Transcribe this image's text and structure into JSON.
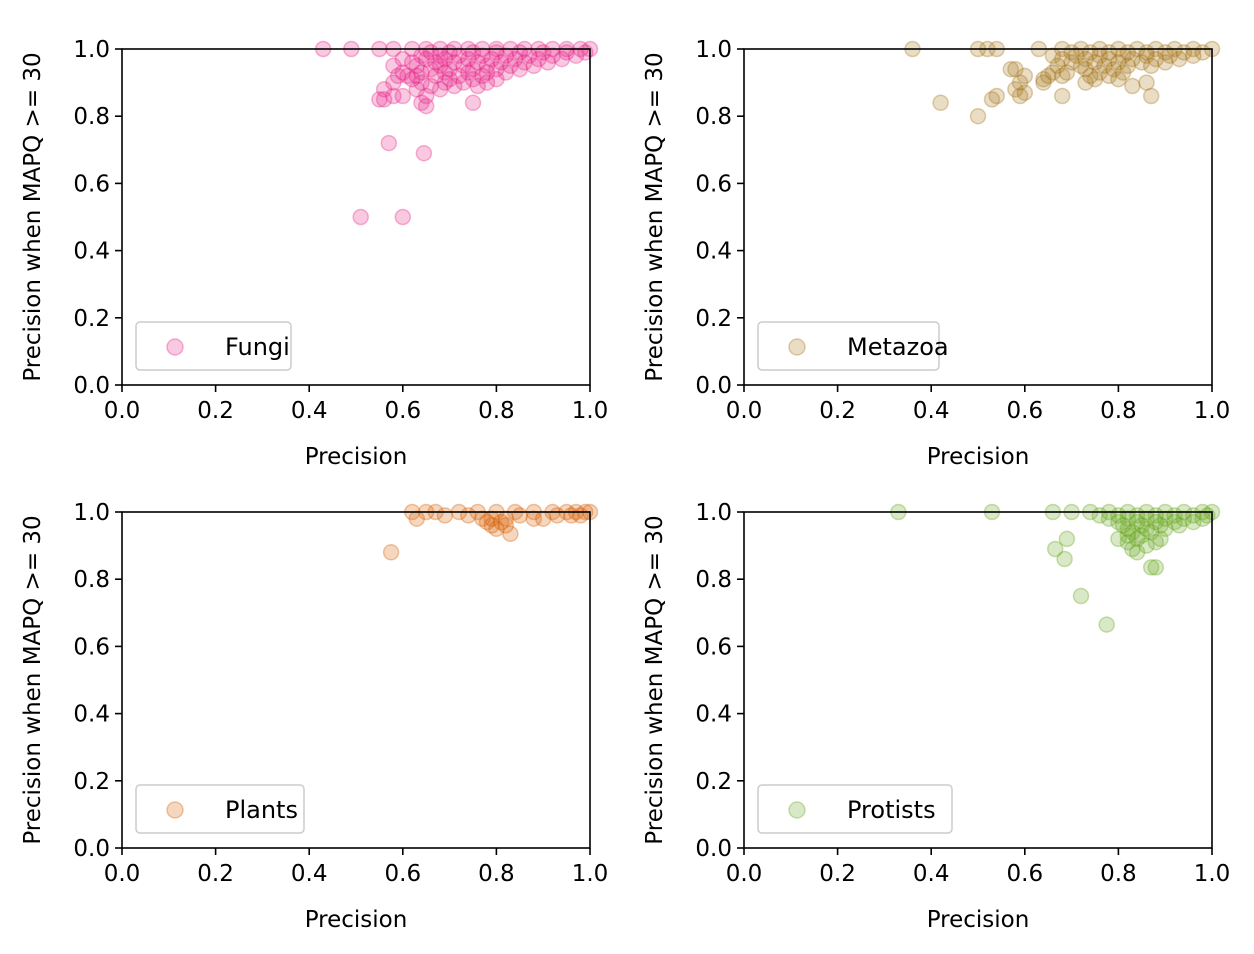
{
  "chart_data": [
    {
      "type": "scatter",
      "series": [
        {
          "name": "Fungi",
          "color": "#e7298a",
          "alpha": 0.25
        }
      ],
      "xlabel": "Precision",
      "ylabel": "Precision when MAPQ >= 30",
      "xlim": [
        0.0,
        1.0
      ],
      "ylim": [
        0.0,
        1.0
      ],
      "xticks": [
        "0.0",
        "0.2",
        "0.4",
        "0.6",
        "0.8",
        "1.0"
      ],
      "yticks": [
        "0.0",
        "0.2",
        "0.4",
        "0.6",
        "0.8",
        "1.0"
      ],
      "legend": "lower-left",
      "points": [
        [
          0.43,
          1.0
        ],
        [
          0.49,
          1.0
        ],
        [
          0.55,
          1.0
        ],
        [
          0.58,
          1.0
        ],
        [
          0.62,
          1.0
        ],
        [
          0.65,
          1.0
        ],
        [
          0.68,
          1.0
        ],
        [
          0.71,
          1.0
        ],
        [
          0.74,
          1.0
        ],
        [
          0.77,
          1.0
        ],
        [
          0.8,
          1.0
        ],
        [
          0.83,
          1.0
        ],
        [
          0.86,
          1.0
        ],
        [
          0.89,
          1.0
        ],
        [
          0.92,
          1.0
        ],
        [
          0.95,
          1.0
        ],
        [
          0.98,
          1.0
        ],
        [
          1.0,
          1.0
        ],
        [
          0.66,
          0.99
        ],
        [
          0.7,
          0.99
        ],
        [
          0.75,
          0.99
        ],
        [
          0.8,
          0.99
        ],
        [
          0.85,
          0.99
        ],
        [
          0.9,
          0.99
        ],
        [
          0.95,
          0.99
        ],
        [
          0.99,
          0.99
        ],
        [
          0.64,
          0.98
        ],
        [
          0.68,
          0.98
        ],
        [
          0.72,
          0.98
        ],
        [
          0.77,
          0.98
        ],
        [
          0.82,
          0.98
        ],
        [
          0.87,
          0.98
        ],
        [
          0.92,
          0.98
        ],
        [
          0.97,
          0.98
        ],
        [
          0.6,
          0.97
        ],
        [
          0.65,
          0.97
        ],
        [
          0.69,
          0.97
        ],
        [
          0.74,
          0.97
        ],
        [
          0.79,
          0.97
        ],
        [
          0.84,
          0.97
        ],
        [
          0.89,
          0.97
        ],
        [
          0.94,
          0.97
        ],
        [
          0.62,
          0.96
        ],
        [
          0.67,
          0.96
        ],
        [
          0.71,
          0.96
        ],
        [
          0.76,
          0.96
        ],
        [
          0.81,
          0.96
        ],
        [
          0.86,
          0.96
        ],
        [
          0.91,
          0.96
        ],
        [
          0.58,
          0.95
        ],
        [
          0.63,
          0.95
        ],
        [
          0.68,
          0.95
        ],
        [
          0.73,
          0.95
        ],
        [
          0.78,
          0.95
        ],
        [
          0.83,
          0.95
        ],
        [
          0.88,
          0.95
        ],
        [
          0.66,
          0.94
        ],
        [
          0.7,
          0.94
        ],
        [
          0.75,
          0.94
        ],
        [
          0.8,
          0.94
        ],
        [
          0.85,
          0.94
        ],
        [
          0.6,
          0.93
        ],
        [
          0.64,
          0.93
        ],
        [
          0.69,
          0.93
        ],
        [
          0.74,
          0.93
        ],
        [
          0.78,
          0.93
        ],
        [
          0.82,
          0.93
        ],
        [
          0.59,
          0.92
        ],
        [
          0.61,
          0.92
        ],
        [
          0.63,
          0.92
        ],
        [
          0.67,
          0.92
        ],
        [
          0.72,
          0.92
        ],
        [
          0.77,
          0.92
        ],
        [
          0.7,
          0.91
        ],
        [
          0.75,
          0.91
        ],
        [
          0.8,
          0.91
        ],
        [
          0.62,
          0.91
        ],
        [
          0.64,
          0.9
        ],
        [
          0.69,
          0.9
        ],
        [
          0.73,
          0.9
        ],
        [
          0.78,
          0.9
        ],
        [
          0.58,
          0.9
        ],
        [
          0.66,
          0.89
        ],
        [
          0.71,
          0.89
        ],
        [
          0.76,
          0.89
        ],
        [
          0.56,
          0.88
        ],
        [
          0.63,
          0.88
        ],
        [
          0.68,
          0.88
        ],
        [
          0.6,
          0.86
        ],
        [
          0.65,
          0.86
        ],
        [
          0.58,
          0.86
        ],
        [
          0.55,
          0.85
        ],
        [
          0.56,
          0.85
        ],
        [
          0.64,
          0.84
        ],
        [
          0.75,
          0.84
        ],
        [
          0.65,
          0.83
        ],
        [
          0.57,
          0.72
        ],
        [
          0.645,
          0.69
        ],
        [
          0.51,
          0.5
        ],
        [
          0.6,
          0.5
        ]
      ]
    },
    {
      "type": "scatter",
      "series": [
        {
          "name": "Metazoa",
          "color": "#a6761d",
          "alpha": 0.25
        }
      ],
      "xlabel": "Precision",
      "ylabel": "Precision when MAPQ >= 30",
      "xlim": [
        0.0,
        1.0
      ],
      "ylim": [
        0.0,
        1.0
      ],
      "xticks": [
        "0.0",
        "0.2",
        "0.4",
        "0.6",
        "0.8",
        "1.0"
      ],
      "yticks": [
        "0.0",
        "0.2",
        "0.4",
        "0.6",
        "0.8",
        "1.0"
      ],
      "legend": "lower-left",
      "points": [
        [
          0.36,
          1.0
        ],
        [
          0.5,
          1.0
        ],
        [
          0.52,
          1.0
        ],
        [
          0.54,
          1.0
        ],
        [
          0.63,
          1.0
        ],
        [
          0.68,
          1.0
        ],
        [
          0.72,
          1.0
        ],
        [
          0.76,
          1.0
        ],
        [
          0.8,
          1.0
        ],
        [
          0.84,
          1.0
        ],
        [
          0.88,
          1.0
        ],
        [
          0.92,
          1.0
        ],
        [
          0.96,
          1.0
        ],
        [
          1.0,
          1.0
        ],
        [
          0.7,
          0.99
        ],
        [
          0.74,
          0.99
        ],
        [
          0.78,
          0.99
        ],
        [
          0.82,
          0.99
        ],
        [
          0.86,
          0.99
        ],
        [
          0.9,
          0.99
        ],
        [
          0.94,
          0.99
        ],
        [
          0.98,
          0.99
        ],
        [
          0.66,
          0.98
        ],
        [
          0.71,
          0.98
        ],
        [
          0.76,
          0.98
        ],
        [
          0.81,
          0.98
        ],
        [
          0.86,
          0.98
        ],
        [
          0.91,
          0.98
        ],
        [
          0.96,
          0.98
        ],
        [
          0.68,
          0.97
        ],
        [
          0.73,
          0.97
        ],
        [
          0.78,
          0.97
        ],
        [
          0.83,
          0.97
        ],
        [
          0.88,
          0.97
        ],
        [
          0.93,
          0.97
        ],
        [
          0.7,
          0.96
        ],
        [
          0.75,
          0.96
        ],
        [
          0.8,
          0.96
        ],
        [
          0.85,
          0.96
        ],
        [
          0.9,
          0.96
        ],
        [
          0.67,
          0.95
        ],
        [
          0.72,
          0.95
        ],
        [
          0.77,
          0.95
        ],
        [
          0.82,
          0.95
        ],
        [
          0.87,
          0.95
        ],
        [
          0.57,
          0.94
        ],
        [
          0.58,
          0.94
        ],
        [
          0.73,
          0.94
        ],
        [
          0.79,
          0.94
        ],
        [
          0.66,
          0.93
        ],
        [
          0.69,
          0.93
        ],
        [
          0.76,
          0.93
        ],
        [
          0.81,
          0.93
        ],
        [
          0.65,
          0.92
        ],
        [
          0.68,
          0.92
        ],
        [
          0.74,
          0.92
        ],
        [
          0.78,
          0.92
        ],
        [
          0.6,
          0.92
        ],
        [
          0.64,
          0.91
        ],
        [
          0.75,
          0.91
        ],
        [
          0.8,
          0.91
        ],
        [
          0.59,
          0.9
        ],
        [
          0.64,
          0.9
        ],
        [
          0.73,
          0.9
        ],
        [
          0.86,
          0.9
        ],
        [
          0.58,
          0.88
        ],
        [
          0.83,
          0.89
        ],
        [
          0.6,
          0.87
        ],
        [
          0.54,
          0.86
        ],
        [
          0.59,
          0.86
        ],
        [
          0.68,
          0.86
        ],
        [
          0.87,
          0.86
        ],
        [
          0.53,
          0.85
        ],
        [
          0.42,
          0.84
        ],
        [
          0.5,
          0.8
        ]
      ]
    },
    {
      "type": "scatter",
      "series": [
        {
          "name": "Plants",
          "color": "#d95f02",
          "alpha": 0.25
        }
      ],
      "xlabel": "Precision",
      "ylabel": "Precision when MAPQ >= 30",
      "xlim": [
        0.0,
        1.0
      ],
      "ylim": [
        0.0,
        1.0
      ],
      "xticks": [
        "0.0",
        "0.2",
        "0.4",
        "0.6",
        "0.8",
        "1.0"
      ],
      "yticks": [
        "0.0",
        "0.2",
        "0.4",
        "0.6",
        "0.8",
        "1.0"
      ],
      "legend": "lower-left",
      "points": [
        [
          0.62,
          1.0
        ],
        [
          0.65,
          1.0
        ],
        [
          0.67,
          1.0
        ],
        [
          0.72,
          1.0
        ],
        [
          0.76,
          1.0
        ],
        [
          0.8,
          1.0
        ],
        [
          0.84,
          1.0
        ],
        [
          0.88,
          1.0
        ],
        [
          0.92,
          1.0
        ],
        [
          0.95,
          1.0
        ],
        [
          0.97,
          1.0
        ],
        [
          0.99,
          1.0
        ],
        [
          1.0,
          1.0
        ],
        [
          0.63,
          0.98
        ],
        [
          0.69,
          0.99
        ],
        [
          0.74,
          0.99
        ],
        [
          0.77,
          0.98
        ],
        [
          0.79,
          0.98
        ],
        [
          0.82,
          0.98
        ],
        [
          0.85,
          0.99
        ],
        [
          0.88,
          0.98
        ],
        [
          0.9,
          0.98
        ],
        [
          0.93,
          0.99
        ],
        [
          0.96,
          0.99
        ],
        [
          0.98,
          0.99
        ],
        [
          0.78,
          0.97
        ],
        [
          0.81,
          0.97
        ],
        [
          0.79,
          0.96
        ],
        [
          0.82,
          0.96
        ],
        [
          0.8,
          0.95
        ],
        [
          0.83,
          0.935
        ],
        [
          0.575,
          0.88
        ]
      ]
    },
    {
      "type": "scatter",
      "series": [
        {
          "name": "Protists",
          "color": "#66a61e",
          "alpha": 0.25
        }
      ],
      "xlabel": "Precision",
      "ylabel": "Precision when MAPQ >= 30",
      "xlim": [
        0.0,
        1.0
      ],
      "ylim": [
        0.0,
        1.0
      ],
      "xticks": [
        "0.0",
        "0.2",
        "0.4",
        "0.6",
        "0.8",
        "1.0"
      ],
      "yticks": [
        "0.0",
        "0.2",
        "0.4",
        "0.6",
        "0.8",
        "1.0"
      ],
      "legend": "lower-left",
      "points": [
        [
          0.33,
          1.0
        ],
        [
          0.53,
          1.0
        ],
        [
          0.66,
          1.0
        ],
        [
          0.7,
          1.0
        ],
        [
          0.74,
          1.0
        ],
        [
          0.78,
          1.0
        ],
        [
          0.82,
          1.0
        ],
        [
          0.86,
          1.0
        ],
        [
          0.9,
          1.0
        ],
        [
          0.94,
          1.0
        ],
        [
          0.98,
          1.0
        ],
        [
          1.0,
          1.0
        ],
        [
          0.76,
          0.99
        ],
        [
          0.8,
          0.99
        ],
        [
          0.84,
          0.99
        ],
        [
          0.88,
          0.99
        ],
        [
          0.92,
          0.99
        ],
        [
          0.96,
          0.99
        ],
        [
          0.99,
          0.99
        ],
        [
          0.78,
          0.98
        ],
        [
          0.82,
          0.98
        ],
        [
          0.86,
          0.98
        ],
        [
          0.9,
          0.98
        ],
        [
          0.94,
          0.98
        ],
        [
          0.98,
          0.98
        ],
        [
          0.8,
          0.97
        ],
        [
          0.84,
          0.97
        ],
        [
          0.88,
          0.97
        ],
        [
          0.92,
          0.97
        ],
        [
          0.96,
          0.97
        ],
        [
          0.81,
          0.96
        ],
        [
          0.85,
          0.96
        ],
        [
          0.89,
          0.96
        ],
        [
          0.93,
          0.96
        ],
        [
          0.82,
          0.95
        ],
        [
          0.86,
          0.95
        ],
        [
          0.9,
          0.95
        ],
        [
          0.83,
          0.94
        ],
        [
          0.87,
          0.94
        ],
        [
          0.82,
          0.93
        ],
        [
          0.85,
          0.93
        ],
        [
          0.89,
          0.92
        ],
        [
          0.84,
          0.92
        ],
        [
          0.8,
          0.92
        ],
        [
          0.69,
          0.92
        ],
        [
          0.88,
          0.91
        ],
        [
          0.82,
          0.91
        ],
        [
          0.86,
          0.9
        ],
        [
          0.665,
          0.89
        ],
        [
          0.83,
          0.89
        ],
        [
          0.84,
          0.88
        ],
        [
          0.685,
          0.86
        ],
        [
          0.87,
          0.835
        ],
        [
          0.88,
          0.835
        ],
        [
          0.72,
          0.75
        ],
        [
          0.775,
          0.665
        ]
      ]
    }
  ]
}
